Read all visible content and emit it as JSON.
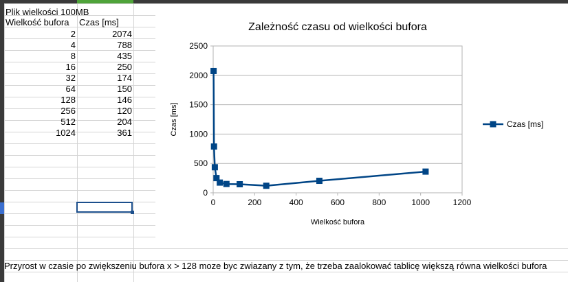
{
  "sheet": {
    "a1": "Plik wielkości 100MB",
    "header_a": "Wielkość bufora",
    "header_b": "Czas [ms]",
    "rows": [
      {
        "a": "2",
        "b": "2074"
      },
      {
        "a": "4",
        "b": "788"
      },
      {
        "a": "8",
        "b": "435"
      },
      {
        "a": "16",
        "b": "250"
      },
      {
        "a": "32",
        "b": "174"
      },
      {
        "a": "64",
        "b": "150"
      },
      {
        "a": "128",
        "b": "146"
      },
      {
        "a": "256",
        "b": "120"
      },
      {
        "a": "512",
        "b": "204"
      },
      {
        "a": "1024",
        "b": "361"
      }
    ],
    "note": "Przyrost w czasie po zwiększeniu bufora x > 128 moze byc zwiazany z tym, że trzeba zaalokować tablicę większą równa wielkości bufora"
  },
  "chart_data": {
    "type": "scatter",
    "title": "Zależność czasu od wielkości bufora",
    "xlabel": "Wielkość bufora",
    "ylabel": "Czas [ms]",
    "xlim": [
      0,
      1200
    ],
    "ylim": [
      0,
      2500
    ],
    "xticks": [
      "0",
      "200",
      "400",
      "600",
      "800",
      "1000",
      "1200"
    ],
    "yticks": [
      "0",
      "500",
      "1000",
      "1500",
      "2000",
      "2500"
    ],
    "grid": "horizontal",
    "legend": "right",
    "series": [
      {
        "name": "Czas [ms]",
        "x": [
          2,
          4,
          8,
          16,
          32,
          64,
          128,
          256,
          512,
          1024
        ],
        "y": [
          2074,
          788,
          435,
          250,
          174,
          150,
          146,
          120,
          204,
          361
        ],
        "color": "#004586"
      }
    ]
  }
}
